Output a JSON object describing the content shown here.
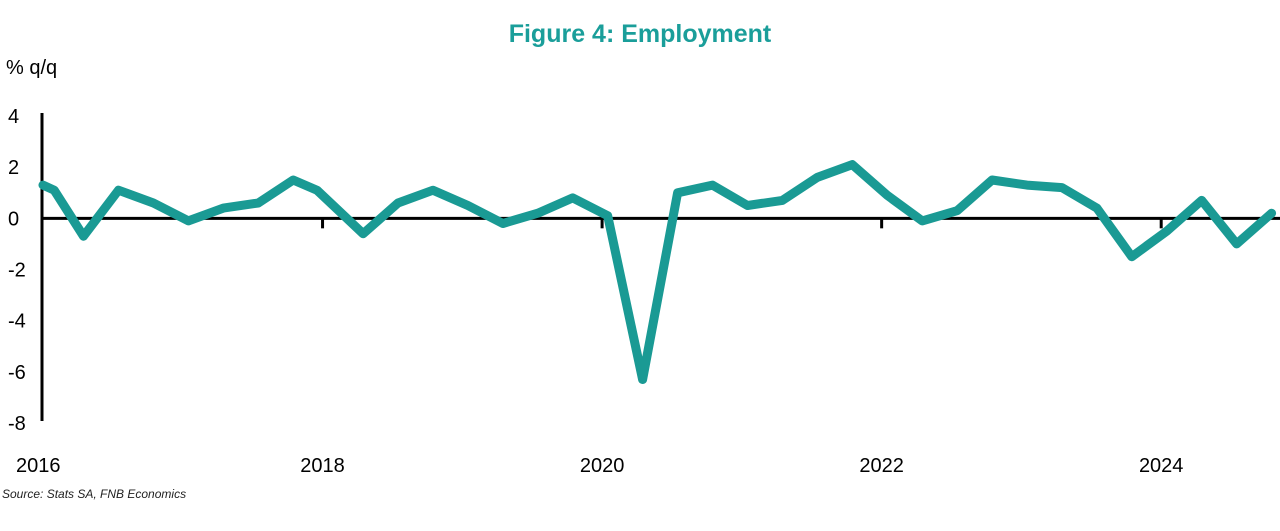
{
  "chart_data": {
    "type": "line",
    "title": "Figure 4: Employment",
    "ylabel": "% q/q",
    "source": "Source: Stats SA, FNB Economics",
    "ylim": [
      -8,
      4
    ],
    "yticks": [
      "4",
      "2",
      "0",
      "-2",
      "-4",
      "-6",
      "-8"
    ],
    "ytick_values": [
      4,
      2,
      0,
      -2,
      -4,
      -6,
      -8
    ],
    "xlim": [
      2016,
      2024.85
    ],
    "xticks": [
      "2016",
      "2018",
      "2020",
      "2022",
      "2024"
    ],
    "xtick_values": [
      2016,
      2018,
      2020,
      2022,
      2024
    ],
    "color": "#1a9a94",
    "series": [
      {
        "x": [
          2016.0,
          2016.08,
          2016.29,
          2016.54,
          2016.79,
          2017.04,
          2017.29,
          2017.54,
          2017.79,
          2017.96,
          2018.29,
          2018.54,
          2018.79,
          2019.04,
          2019.29,
          2019.54,
          2019.79,
          2020.04,
          2020.29,
          2020.54,
          2020.79,
          2021.04,
          2021.29,
          2021.54,
          2021.79,
          2022.04,
          2022.29,
          2022.54,
          2022.79,
          2023.04,
          2023.29,
          2023.54,
          2023.79,
          2024.04,
          2024.29,
          2024.54,
          2024.79
        ],
        "values": [
          1.3,
          1.1,
          -0.7,
          1.1,
          0.6,
          -0.1,
          0.4,
          0.6,
          1.5,
          1.1,
          -0.6,
          0.6,
          1.1,
          0.5,
          -0.2,
          0.2,
          0.8,
          0.1,
          -6.3,
          1.0,
          1.3,
          0.5,
          0.7,
          1.6,
          2.1,
          0.9,
          -0.1,
          0.3,
          1.5,
          1.3,
          1.2,
          0.4,
          -1.5,
          -0.5,
          0.7,
          -1.0,
          0.2
        ]
      }
    ]
  }
}
